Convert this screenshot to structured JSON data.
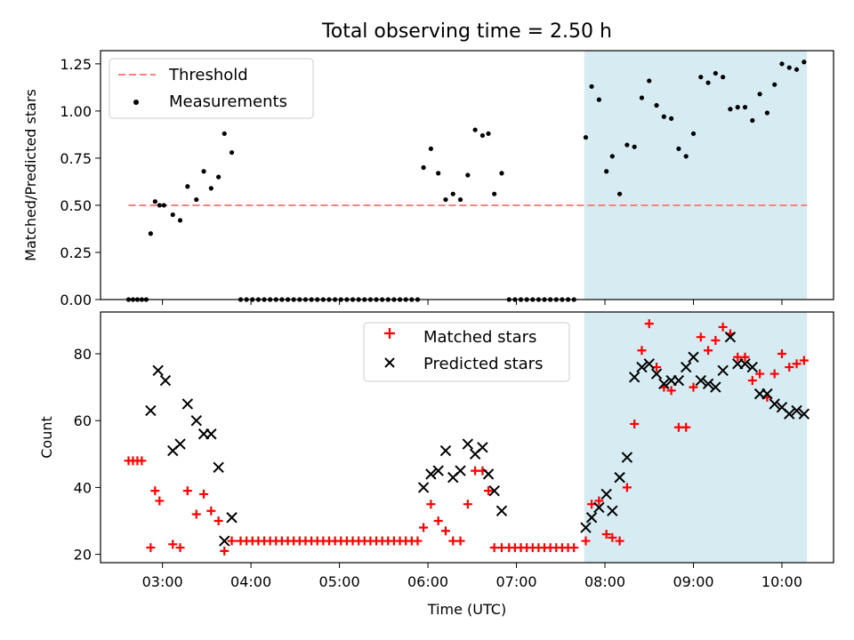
{
  "title": "Total observing time = 2.50 h",
  "colors": {
    "threshold": "#ff7f7f",
    "measurements": "#000000",
    "matched": "#ff0000",
    "predicted": "#000000",
    "observing_span": "#add8e6"
  },
  "chart_data": [
    {
      "type": "scatter",
      "ylabel": "Matched/Predicted stars",
      "ylim": [
        0,
        1.32
      ],
      "yticks": [
        0,
        0.25,
        0.5,
        0.75,
        1.0,
        1.25
      ],
      "ytick_labels": [
        "0.00",
        "0.25",
        "0.50",
        "0.75",
        "1.00",
        "1.25"
      ],
      "xlim": [
        "02:18",
        "10:35"
      ],
      "legend_position": "top-left",
      "observing_span": [
        "07:46",
        "10:17"
      ],
      "threshold": {
        "name": "Threshold",
        "y": 0.5,
        "x": [
          "02:37",
          "10:17"
        ]
      },
      "series": [
        {
          "name": "Measurements",
          "marker": "dot",
          "points": [
            [
              "02:37",
              0
            ],
            [
              "02:40",
              0
            ],
            [
              "02:43",
              0
            ],
            [
              "02:46",
              0
            ],
            [
              "02:49",
              0
            ],
            [
              "02:52",
              0.35
            ],
            [
              "02:55",
              0.52
            ],
            [
              "02:58",
              0.5
            ],
            [
              "03:01",
              0.5
            ],
            [
              "03:07",
              0.45
            ],
            [
              "03:12",
              0.42
            ],
            [
              "03:17",
              0.6
            ],
            [
              "03:23",
              0.53
            ],
            [
              "03:28",
              0.68
            ],
            [
              "03:33",
              0.59
            ],
            [
              "03:38",
              0.65
            ],
            [
              "03:42",
              0.88
            ],
            [
              "03:47",
              0.78
            ],
            [
              "03:53",
              0
            ],
            [
              "03:57",
              0
            ],
            [
              "04:01",
              0
            ],
            [
              "04:05",
              0
            ],
            [
              "04:09",
              0
            ],
            [
              "04:13",
              0
            ],
            [
              "04:17",
              0
            ],
            [
              "04:21",
              0
            ],
            [
              "04:25",
              0
            ],
            [
              "04:29",
              0
            ],
            [
              "04:33",
              0
            ],
            [
              "04:37",
              0
            ],
            [
              "04:41",
              0
            ],
            [
              "04:45",
              0
            ],
            [
              "04:49",
              0
            ],
            [
              "04:53",
              0
            ],
            [
              "04:57",
              0
            ],
            [
              "05:01",
              0
            ],
            [
              "05:05",
              0
            ],
            [
              "05:09",
              0
            ],
            [
              "05:13",
              0
            ],
            [
              "05:17",
              0
            ],
            [
              "05:21",
              0
            ],
            [
              "05:25",
              0
            ],
            [
              "05:29",
              0
            ],
            [
              "05:33",
              0
            ],
            [
              "05:37",
              0
            ],
            [
              "05:41",
              0
            ],
            [
              "05:45",
              0
            ],
            [
              "05:49",
              0
            ],
            [
              "05:53",
              0
            ],
            [
              "05:57",
              0.7
            ],
            [
              "06:02",
              0.8
            ],
            [
              "06:07",
              0.67
            ],
            [
              "06:12",
              0.53
            ],
            [
              "06:17",
              0.56
            ],
            [
              "06:22",
              0.53
            ],
            [
              "06:27",
              0.66
            ],
            [
              "06:32",
              0.9
            ],
            [
              "06:37",
              0.87
            ],
            [
              "06:41",
              0.88
            ],
            [
              "06:45",
              0.56
            ],
            [
              "06:50",
              0.67
            ],
            [
              "06:55",
              0
            ],
            [
              "06:59",
              0
            ],
            [
              "07:03",
              0
            ],
            [
              "07:07",
              0
            ],
            [
              "07:11",
              0
            ],
            [
              "07:15",
              0
            ],
            [
              "07:19",
              0
            ],
            [
              "07:23",
              0
            ],
            [
              "07:27",
              0
            ],
            [
              "07:31",
              0
            ],
            [
              "07:35",
              0
            ],
            [
              "07:39",
              0
            ],
            [
              "07:47",
              0.86
            ],
            [
              "07:51",
              1.13
            ],
            [
              "07:56",
              1.06
            ],
            [
              "08:01",
              0.68
            ],
            [
              "08:05",
              0.76
            ],
            [
              "08:10",
              0.56
            ],
            [
              "08:15",
              0.82
            ],
            [
              "08:20",
              0.81
            ],
            [
              "08:25",
              1.07
            ],
            [
              "08:30",
              1.16
            ],
            [
              "08:35",
              1.03
            ],
            [
              "08:40",
              0.97
            ],
            [
              "08:45",
              0.96
            ],
            [
              "08:50",
              0.8
            ],
            [
              "08:55",
              0.76
            ],
            [
              "09:00",
              0.88
            ],
            [
              "09:05",
              1.18
            ],
            [
              "09:10",
              1.15
            ],
            [
              "09:15",
              1.2
            ],
            [
              "09:20",
              1.18
            ],
            [
              "09:25",
              1.01
            ],
            [
              "09:30",
              1.02
            ],
            [
              "09:35",
              1.02
            ],
            [
              "09:40",
              0.95
            ],
            [
              "09:45",
              1.09
            ],
            [
              "09:50",
              0.99
            ],
            [
              "09:55",
              1.14
            ],
            [
              "10:00",
              1.25
            ],
            [
              "10:05",
              1.23
            ],
            [
              "10:10",
              1.22
            ],
            [
              "10:15",
              1.26
            ]
          ]
        }
      ]
    },
    {
      "type": "scatter",
      "xlabel": "Time (UTC)",
      "ylabel": "Count",
      "ylim": [
        17.5,
        92.5
      ],
      "yticks": [
        20,
        40,
        60,
        80
      ],
      "xlim": [
        "02:18",
        "10:35"
      ],
      "xticks": [
        "03:00",
        "04:00",
        "05:00",
        "06:00",
        "07:00",
        "08:00",
        "09:00",
        "10:00"
      ],
      "legend_position": "top-center",
      "observing_span": [
        "07:46",
        "10:17"
      ],
      "series": [
        {
          "name": "Matched stars",
          "marker": "plus",
          "points": [
            [
              "02:37",
              48
            ],
            [
              "02:40",
              48
            ],
            [
              "02:43",
              48
            ],
            [
              "02:46",
              48
            ],
            [
              "02:52",
              22
            ],
            [
              "02:55",
              39
            ],
            [
              "02:58",
              36
            ],
            [
              "03:07",
              23
            ],
            [
              "03:12",
              22
            ],
            [
              "03:17",
              39
            ],
            [
              "03:23",
              32
            ],
            [
              "03:28",
              38
            ],
            [
              "03:33",
              33
            ],
            [
              "03:38",
              30
            ],
            [
              "03:42",
              21
            ],
            [
              "03:47",
              24
            ],
            [
              "03:53",
              24
            ],
            [
              "03:57",
              24
            ],
            [
              "04:01",
              24
            ],
            [
              "04:05",
              24
            ],
            [
              "04:09",
              24
            ],
            [
              "04:13",
              24
            ],
            [
              "04:17",
              24
            ],
            [
              "04:21",
              24
            ],
            [
              "04:25",
              24
            ],
            [
              "04:29",
              24
            ],
            [
              "04:33",
              24
            ],
            [
              "04:37",
              24
            ],
            [
              "04:41",
              24
            ],
            [
              "04:45",
              24
            ],
            [
              "04:49",
              24
            ],
            [
              "04:53",
              24
            ],
            [
              "04:57",
              24
            ],
            [
              "05:01",
              24
            ],
            [
              "05:05",
              24
            ],
            [
              "05:09",
              24
            ],
            [
              "05:13",
              24
            ],
            [
              "05:17",
              24
            ],
            [
              "05:21",
              24
            ],
            [
              "05:25",
              24
            ],
            [
              "05:29",
              24
            ],
            [
              "05:33",
              24
            ],
            [
              "05:37",
              24
            ],
            [
              "05:41",
              24
            ],
            [
              "05:45",
              24
            ],
            [
              "05:49",
              24
            ],
            [
              "05:53",
              24
            ],
            [
              "05:57",
              28
            ],
            [
              "06:02",
              35
            ],
            [
              "06:07",
              30
            ],
            [
              "06:12",
              27
            ],
            [
              "06:17",
              24
            ],
            [
              "06:22",
              24
            ],
            [
              "06:27",
              35
            ],
            [
              "06:32",
              45
            ],
            [
              "06:37",
              45
            ],
            [
              "06:41",
              39
            ],
            [
              "06:45",
              22
            ],
            [
              "06:50",
              22
            ],
            [
              "06:55",
              22
            ],
            [
              "06:59",
              22
            ],
            [
              "07:03",
              22
            ],
            [
              "07:07",
              22
            ],
            [
              "07:11",
              22
            ],
            [
              "07:15",
              22
            ],
            [
              "07:19",
              22
            ],
            [
              "07:23",
              22
            ],
            [
              "07:27",
              22
            ],
            [
              "07:31",
              22
            ],
            [
              "07:35",
              22
            ],
            [
              "07:39",
              22
            ],
            [
              "07:47",
              24
            ],
            [
              "07:51",
              35
            ],
            [
              "07:56",
              36
            ],
            [
              "08:01",
              26
            ],
            [
              "08:05",
              25
            ],
            [
              "08:10",
              24
            ],
            [
              "08:15",
              40
            ],
            [
              "08:20",
              59
            ],
            [
              "08:25",
              81
            ],
            [
              "08:30",
              89
            ],
            [
              "08:35",
              76
            ],
            [
              "08:40",
              70
            ],
            [
              "08:45",
              69
            ],
            [
              "08:50",
              58
            ],
            [
              "08:55",
              58
            ],
            [
              "09:00",
              70
            ],
            [
              "09:05",
              85
            ],
            [
              "09:10",
              81
            ],
            [
              "09:15",
              84
            ],
            [
              "09:20",
              88
            ],
            [
              "09:25",
              86
            ],
            [
              "09:30",
              79
            ],
            [
              "09:35",
              79
            ],
            [
              "09:40",
              72
            ],
            [
              "09:45",
              74
            ],
            [
              "09:50",
              67
            ],
            [
              "09:55",
              74
            ],
            [
              "10:00",
              80
            ],
            [
              "10:05",
              76
            ],
            [
              "10:10",
              77
            ],
            [
              "10:15",
              78
            ]
          ]
        },
        {
          "name": "Predicted stars",
          "marker": "x",
          "points": [
            [
              "02:52",
              63
            ],
            [
              "02:57",
              75
            ],
            [
              "03:02",
              72
            ],
            [
              "03:07",
              51
            ],
            [
              "03:12",
              53
            ],
            [
              "03:17",
              65
            ],
            [
              "03:23",
              60
            ],
            [
              "03:28",
              56
            ],
            [
              "03:33",
              56
            ],
            [
              "03:38",
              46
            ],
            [
              "03:42",
              24
            ],
            [
              "03:47",
              31
            ],
            [
              "05:57",
              40
            ],
            [
              "06:02",
              44
            ],
            [
              "06:07",
              45
            ],
            [
              "06:12",
              51
            ],
            [
              "06:17",
              43
            ],
            [
              "06:22",
              45
            ],
            [
              "06:27",
              53
            ],
            [
              "06:32",
              50
            ],
            [
              "06:37",
              52
            ],
            [
              "06:41",
              44
            ],
            [
              "06:45",
              39
            ],
            [
              "06:50",
              33
            ],
            [
              "07:47",
              28
            ],
            [
              "07:51",
              31
            ],
            [
              "07:56",
              34
            ],
            [
              "08:01",
              38
            ],
            [
              "08:05",
              33
            ],
            [
              "08:10",
              43
            ],
            [
              "08:15",
              49
            ],
            [
              "08:20",
              73
            ],
            [
              "08:25",
              76
            ],
            [
              "08:30",
              77
            ],
            [
              "08:35",
              74
            ],
            [
              "08:40",
              71
            ],
            [
              "08:45",
              72
            ],
            [
              "08:50",
              72
            ],
            [
              "08:55",
              76
            ],
            [
              "09:00",
              79
            ],
            [
              "09:05",
              72
            ],
            [
              "09:10",
              71
            ],
            [
              "09:15",
              70
            ],
            [
              "09:20",
              75
            ],
            [
              "09:25",
              85
            ],
            [
              "09:30",
              77
            ],
            [
              "09:35",
              77
            ],
            [
              "09:40",
              76
            ],
            [
              "09:45",
              68
            ],
            [
              "09:50",
              68
            ],
            [
              "09:55",
              65
            ],
            [
              "10:00",
              64
            ],
            [
              "10:05",
              62
            ],
            [
              "10:10",
              63
            ],
            [
              "10:15",
              62
            ]
          ]
        }
      ]
    }
  ]
}
